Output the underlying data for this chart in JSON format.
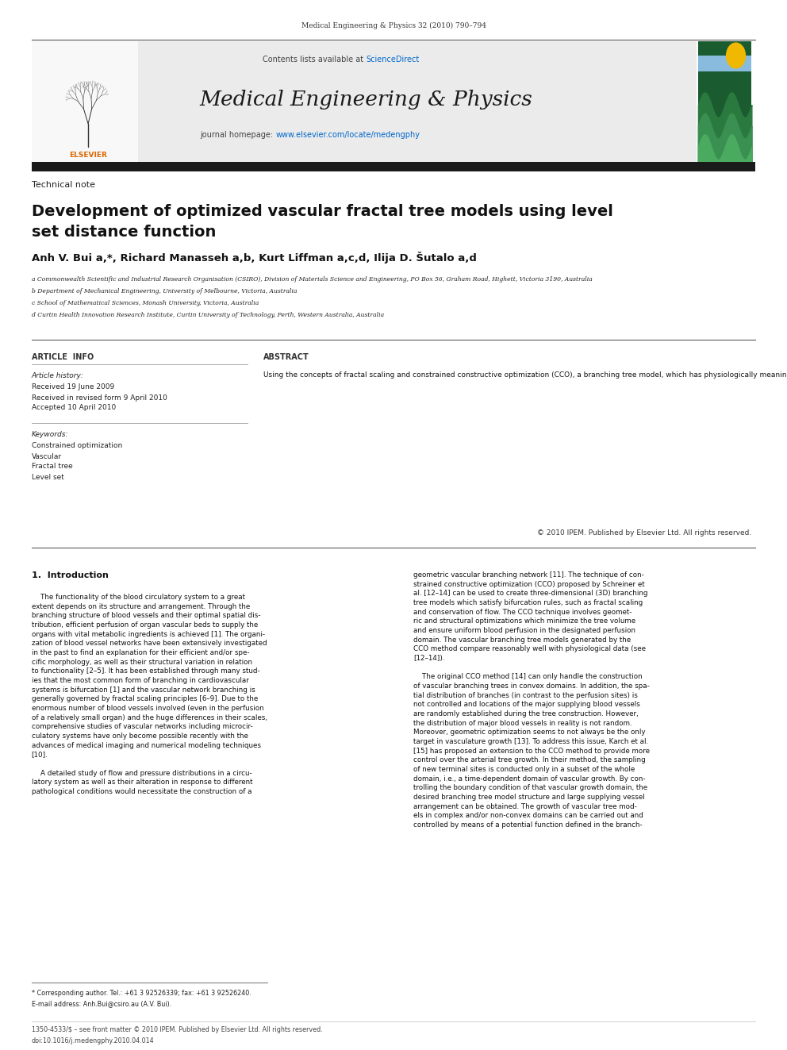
{
  "page_width": 9.92,
  "page_height": 13.23,
  "bg_color": "#ffffff",
  "header_journal": "Medical Engineering & Physics 32 (2010) 790–794",
  "sciencedirect_color": "#0066cc",
  "journal_title": "Medical Engineering & Physics",
  "homepage_color": "#0066cc",
  "section_tag": "Technical note",
  "article_title_line1": "Development of optimized vascular fractal tree models using level",
  "article_title_line2": "set distance function",
  "authors": "Anh V. Bui a,*, Richard Manasseh a,b, Kurt Liffman a,c,d, Ilija D. Šutalo a,d",
  "affil_a": "a Commonwealth Scientific and Industrial Research Organisation (CSIRO), Division of Materials Science and Engineering, PO Box 56, Graham Road, Highett, Victoria 3190, Australia",
  "affil_b": "b Department of Mechanical Engineering, University of Melbourne, Victoria, Australia",
  "affil_c": "c School of Mathematical Sciences, Monash University, Victoria, Australia",
  "affil_d": "d Curtin Health Innovation Research Institute, Curtin University of Technology, Perth, Western Australia, Australia",
  "article_info_header": "ARTICLE  INFO",
  "abstract_header": "ABSTRACT",
  "article_history_label": "Article history:",
  "received1": "Received 19 June 2009",
  "received2": "Received in revised form 9 April 2010",
  "accepted": "Accepted 10 April 2010",
  "keywords_label": "Keywords:",
  "keywords": [
    "Constrained optimization",
    "Vascular",
    "Fractal tree",
    "Level set"
  ],
  "abstract_text": "Using the concepts of fractal scaling and constrained constructive optimization (CCO), a branching tree model, which has physiologically meaningful geometric properties, can be constructed [12–14]. A vascular branching tree model created in this way, although statistically correct in representing the vascular physiology, still does not possess a physiological correct arrangement of the major arteries. A distance-function based technique for “staged growth” of vascular models has been developed in this work to address this issue. Time-dependent constraints based on a signed-distance level set function have been added, so that the tree models will first be grown near the designated surface(s) and, then, gradually allowed to penetrate into the enclosed volume. The proposed technique has been applied to construct a model of the human cerebral vasculature, which is characterized by the above-mentioned distribution of the arteries.",
  "copyright": "© 2010 IPEM. Published by Elsevier Ltd. All rights reserved.",
  "intro_header": "1.  Introduction",
  "intro_text_left": "    The functionality of the blood circulatory system to a great\nextent depends on its structure and arrangement. Through the\nbranching structure of blood vessels and their optimal spatial dis-\ntribution, efficient perfusion of organ vascular beds to supply the\norgans with vital metabolic ingredients is achieved [1]. The organi-\nzation of blood vessel networks have been extensively investigated\nin the past to find an explanation for their efficient and/or spe-\ncific morphology, as well as their structural variation in relation\nto functionality [2–5]. It has been established through many stud-\nies that the most common form of branching in cardiovascular\nsystems is bifurcation [1] and the vascular network branching is\ngenerally governed by fractal scaling principles [6–9]. Due to the\nenormous number of blood vessels involved (even in the perfusion\nof a relatively small organ) and the huge differences in their scales,\ncomprehensive studies of vascular networks including microcir-\nculatory systems have only become possible recently with the\nadvances of medical imaging and numerical modeling techniques\n[10].\n\n    A detailed study of flow and pressure distributions in a circu-\nlatory system as well as their alteration in response to different\npathological conditions would necessitate the construction of a",
  "intro_text_right": "geometric vascular branching network [11]. The technique of con-\nstrained constructive optimization (CCO) proposed by Schreiner et\nal. [12–14] can be used to create three-dimensional (3D) branching\ntree models which satisfy bifurcation rules, such as fractal scaling\nand conservation of flow. The CCO technique involves geomet-\nric and structural optimizations which minimize the tree volume\nand ensure uniform blood perfusion in the designated perfusion\ndomain. The vascular branching tree models generated by the\nCCO method compare reasonably well with physiological data (see\n[12–14]).\n\n    The original CCO method [14] can only handle the construction\nof vascular branching trees in convex domains. In addition, the spa-\ntial distribution of branches (in contrast to the perfusion sites) is\nnot controlled and locations of the major supplying blood vessels\nare randomly established during the tree construction. However,\nthe distribution of major blood vessels in reality is not random.\nMoreover, geometric optimization seems to not always be the only\ntarget in vasculature growth [13]. To address this issue, Karch et al.\n[15] has proposed an extension to the CCO method to provide more\ncontrol over the arterial tree growth. In their method, the sampling\nof new terminal sites is conducted only in a subset of the whole\ndomain, i.e., a time-dependent domain of vascular growth. By con-\ntrolling the boundary condition of that vascular growth domain, the\ndesired branching tree model structure and large supplying vessel\narrangement can be obtained. The growth of vascular tree mod-\nels in complex and/or non-convex domains can be carried out and\ncontrolled by means of a potential function defined in the branch-",
  "footnote_corresponding": "* Corresponding author. Tel.: +61 3 92526339; fax: +61 3 92526240.",
  "footnote_email": "E-mail address: Anh.Bui@csiro.au (A.V. Bui).",
  "footer_issn": "1350-4533/$ – see front matter © 2010 IPEM. Published by Elsevier Ltd. All rights reserved.",
  "footer_doi": "doi:10.1016/j.medengphy.2010.04.014"
}
